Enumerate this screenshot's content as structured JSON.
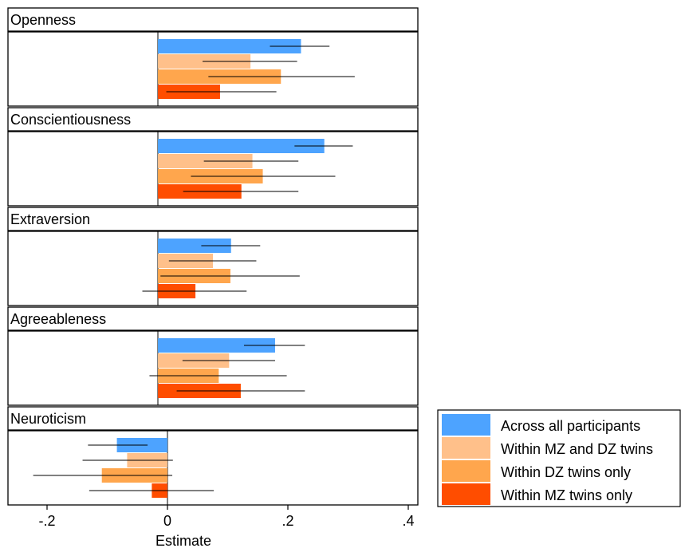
{
  "chart_data": {
    "type": "bar",
    "orientation": "horizontal",
    "layout": "faceted",
    "xlabel": "Estimate",
    "xticks": [
      -0.2,
      0,
      0.2,
      0.4
    ],
    "xtick_labels": [
      "-.2",
      "0",
      ".2",
      ".4"
    ],
    "xlim": [
      -0.26,
      0.41
    ],
    "reference_line": 0,
    "legend_position": "right",
    "series": [
      {
        "name": "Across all participants",
        "color": "#4da3ff"
      },
      {
        "name": "Within MZ and DZ twins",
        "color": "#ffc08a"
      },
      {
        "name": "Within DZ twins only",
        "color": "#ffa64d"
      },
      {
        "name": "Within MZ twins only",
        "color": "#ff4d00"
      }
    ],
    "panels": [
      {
        "title": "Openness",
        "estimates": [
          0.221,
          0.143,
          0.19,
          0.096
        ],
        "ci_low": [
          0.173,
          0.069,
          0.078,
          0.013
        ],
        "ci_high": [
          0.265,
          0.215,
          0.304,
          0.183
        ]
      },
      {
        "title": "Conscientiousness",
        "estimates": [
          0.257,
          0.146,
          0.162,
          0.129
        ],
        "ci_low": [
          0.211,
          0.071,
          0.051,
          0.039
        ],
        "ci_high": [
          0.301,
          0.217,
          0.274,
          0.217
        ]
      },
      {
        "title": "Extraversion",
        "estimates": [
          0.113,
          0.085,
          0.112,
          0.058
        ],
        "ci_low": [
          0.067,
          0.017,
          0.004,
          -0.024
        ],
        "ci_high": [
          0.158,
          0.152,
          0.219,
          0.137
        ]
      },
      {
        "title": "Agreeableness",
        "estimates": [
          0.181,
          0.11,
          0.094,
          0.128
        ],
        "ci_low": [
          0.133,
          0.038,
          -0.013,
          0.029
        ],
        "ci_high": [
          0.227,
          0.181,
          0.199,
          0.227
        ]
      },
      {
        "title": "Neuroticism",
        "estimates": [
          -0.084,
          -0.067,
          -0.109,
          -0.026
        ],
        "ci_low": [
          -0.132,
          -0.141,
          -0.223,
          -0.13
        ],
        "ci_high": [
          -0.033,
          0.009,
          0.008,
          0.077
        ]
      }
    ]
  }
}
